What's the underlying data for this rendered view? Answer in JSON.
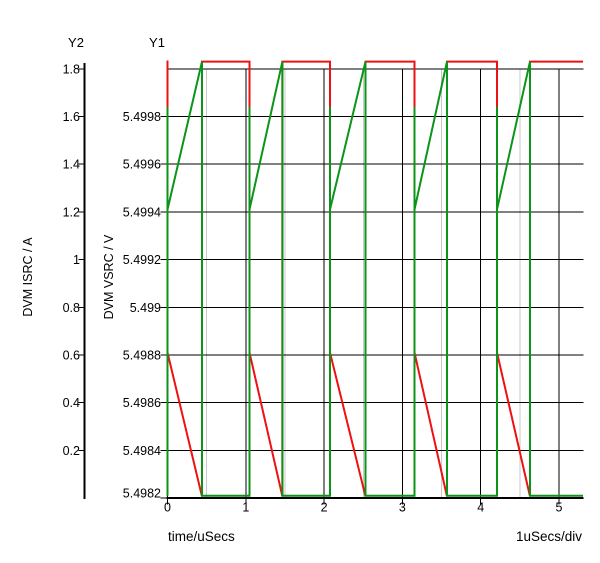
{
  "labels": {
    "y2_title": "Y2",
    "y1_title": "Y1",
    "y2_unit": "DVM ISRC / A",
    "y1_unit": "DVM VSRC / V",
    "x_label": "time/uSecs",
    "x_div_label": "1uSecs/div"
  },
  "colors": {
    "background": "#ffffff",
    "text": "#000000",
    "grid_major": "#000000",
    "grid_minor": "#c8c8c8",
    "trace_isrc_red": "#ee1111",
    "trace_vsrc_green": "#0b9418"
  },
  "chart_data": {
    "type": "line",
    "title": "",
    "grid": {
      "major": true,
      "minor_vertical": true,
      "major_color": "#000000",
      "minor_color": "#c8c8c8"
    },
    "legend": false,
    "x_axis": {
      "label": "time/uSecs",
      "scale_note": "1uSecs/div",
      "unit": "uSecs",
      "range": [
        0,
        5.31
      ],
      "major_div": 1,
      "minor_div": 0.5,
      "tick_values": [
        0,
        1,
        2,
        3,
        4,
        5
      ],
      "tick_labels": [
        "0",
        "1",
        "2",
        "3",
        "4",
        "5"
      ]
    },
    "y_axes": [
      {
        "id": "Y2",
        "label": "DVM ISRC / A",
        "unit": "A",
        "range": [
          0,
          1.84
        ],
        "tick_values": [
          1.8,
          1.6,
          1.4,
          1.2,
          1.0,
          0.8,
          0.6,
          0.4,
          0.2
        ],
        "tick_labels": [
          "1.8",
          "1.6",
          "1.4",
          "1.2",
          "1",
          "0.8",
          "0.6",
          "0.4",
          "0.2"
        ]
      },
      {
        "id": "Y1",
        "label": "DVM VSRC / V",
        "unit": "V",
        "range": [
          5.4982,
          5.50003
        ],
        "tick_values": [
          5.4998,
          5.4996,
          5.4994,
          5.4992,
          5.499,
          5.4988,
          5.4986,
          5.4984,
          5.4982
        ],
        "tick_labels": [
          "5.4998",
          "5.4996",
          "5.4994",
          "5.4992",
          "5.499",
          "5.4988",
          "5.4986",
          "5.4984",
          "5.4982"
        ]
      }
    ],
    "series": [
      {
        "name": "DVM ISRC",
        "axis": "Y2",
        "color": "#ee1111",
        "points": [
          [
            0,
            1.835
          ],
          [
            0,
            0.61
          ],
          [
            0.44,
            0.007
          ],
          [
            0.44,
            1.83
          ],
          [
            1.047,
            1.83
          ],
          [
            1.047,
            0.61
          ],
          [
            1.468,
            0.007
          ],
          [
            1.468,
            1.83
          ],
          [
            2.075,
            1.83
          ],
          [
            2.075,
            0.61
          ],
          [
            2.529,
            0.007
          ],
          [
            2.529,
            1.83
          ],
          [
            3.154,
            1.83
          ],
          [
            3.154,
            0.61
          ],
          [
            3.569,
            0.007
          ],
          [
            3.569,
            1.83
          ],
          [
            4.208,
            1.83
          ],
          [
            4.208,
            0.61
          ],
          [
            4.63,
            0.007
          ],
          [
            4.63,
            1.83
          ],
          [
            5.306,
            1.83
          ]
        ]
      },
      {
        "name": "DVM VSRC",
        "axis": "Y1",
        "color": "#0b9418",
        "points": [
          [
            0,
            5.49821
          ],
          [
            0,
            5.49984
          ],
          [
            0,
            5.49941
          ],
          [
            0.44,
            5.50003
          ],
          [
            0.44,
            5.49821
          ],
          [
            1.047,
            5.49821
          ],
          [
            1.047,
            5.49984
          ],
          [
            1.047,
            5.49941
          ],
          [
            1.468,
            5.50003
          ],
          [
            1.468,
            5.49821
          ],
          [
            2.075,
            5.49821
          ],
          [
            2.075,
            5.49984
          ],
          [
            2.075,
            5.49941
          ],
          [
            2.529,
            5.50003
          ],
          [
            2.529,
            5.49821
          ],
          [
            3.154,
            5.49821
          ],
          [
            3.154,
            5.49984
          ],
          [
            3.154,
            5.49941
          ],
          [
            3.569,
            5.50003
          ],
          [
            3.569,
            5.49821
          ],
          [
            4.208,
            5.49821
          ],
          [
            4.208,
            5.49984
          ],
          [
            4.208,
            5.49941
          ],
          [
            4.63,
            5.50003
          ],
          [
            4.63,
            5.49821
          ],
          [
            5.306,
            5.49821
          ]
        ]
      }
    ]
  }
}
